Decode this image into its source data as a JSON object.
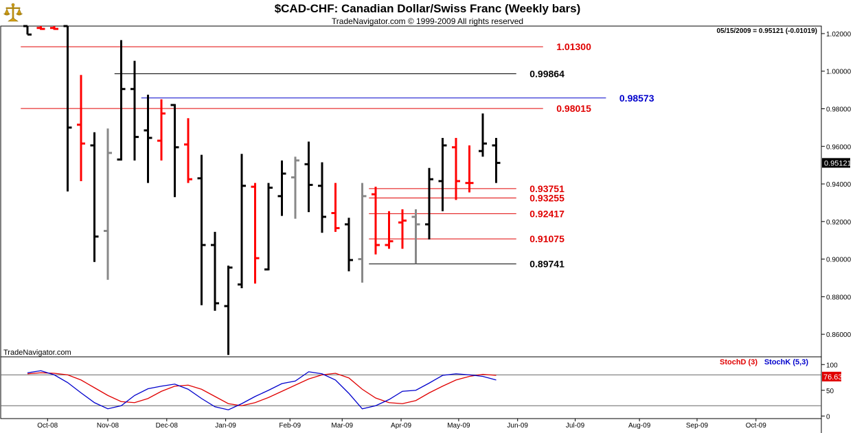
{
  "header": {
    "title": "$CAD-CHF:  Canadian Dollar/Swiss Franc  (Weekly bars)",
    "copyright": "TradeNavigator.com © 1999-2009 All rights reserved",
    "status": "05/15/2009 = 0.95121 (-0.01019)",
    "watermark": "TradeNavigator.com",
    "last_price_label": "0.95121"
  },
  "logo": {
    "icon": "scales-of-justice-icon",
    "color": "#d4a017"
  },
  "chart_data": [
    {
      "type": "ohlc",
      "title": "$CAD-CHF:  Canadian Dollar/Swiss Franc  (Weekly bars)",
      "xlabel": "",
      "ylabel": "",
      "ylim": [
        0.848,
        1.024
      ],
      "y_ticks": [
        1.02,
        1.0,
        0.98,
        0.96,
        0.94,
        0.92,
        0.9,
        0.88,
        0.86
      ],
      "y_tick_labels": [
        "1.02000",
        "1.00000",
        "0.98000",
        "0.96000",
        "0.94000",
        "0.92000",
        "0.90000",
        "0.88000",
        "0.86000"
      ],
      "x_month_labels": [
        {
          "label": "Oct-08",
          "week": 1.5
        },
        {
          "label": "Nov-08",
          "week": 6.0
        },
        {
          "label": "Dec-08",
          "week": 10.4
        },
        {
          "label": "Jan-09",
          "week": 14.8
        },
        {
          "label": "Feb-09",
          "week": 19.6
        },
        {
          "label": "Mar-09",
          "week": 23.5
        },
        {
          "label": "Apr-09",
          "week": 27.9
        },
        {
          "label": "May-09",
          "week": 32.2
        },
        {
          "label": "Jun-09",
          "week": 36.6
        },
        {
          "label": "Jul-09",
          "week": 40.9
        },
        {
          "label": "Aug-09",
          "week": 45.7
        },
        {
          "label": "Sep-09",
          "week": 50.0
        },
        {
          "label": "Oct-09",
          "week": 54.4
        }
      ],
      "colors": {
        "up": "#000000",
        "down": "#ff0000",
        "neutral": "#888888"
      },
      "bars": [
        {
          "week": 0,
          "open": 1.024,
          "high": 1.024,
          "low": 1.0195,
          "close": 1.0195,
          "color": "up"
        },
        {
          "week": 1,
          "open": 1.023,
          "high": 1.024,
          "low": 1.022,
          "close": 1.0225,
          "color": "down"
        },
        {
          "week": 2,
          "open": 1.023,
          "high": 1.024,
          "low": 1.022,
          "close": 1.0225,
          "color": "down"
        },
        {
          "week": 3,
          "open": 1.024,
          "high": 1.024,
          "low": 0.936,
          "close": 0.97,
          "color": "up"
        },
        {
          "week": 4,
          "open": 0.9715,
          "high": 0.998,
          "low": 0.9415,
          "close": 0.9615,
          "color": "down"
        },
        {
          "week": 5,
          "open": 0.9605,
          "high": 0.9675,
          "low": 0.8985,
          "close": 0.912,
          "color": "up"
        },
        {
          "week": 6,
          "open": 0.915,
          "high": 0.9695,
          "low": 0.889,
          "close": 0.9565,
          "color": "neutral"
        },
        {
          "week": 7,
          "open": 0.953,
          "high": 1.0165,
          "low": 0.9525,
          "close": 0.9905,
          "color": "up"
        },
        {
          "week": 8,
          "open": 0.9905,
          "high": 1.0055,
          "low": 0.9525,
          "close": 0.965,
          "color": "up"
        },
        {
          "week": 9,
          "open": 0.9685,
          "high": 0.9875,
          "low": 0.9405,
          "close": 0.9645,
          "color": "up"
        },
        {
          "week": 10,
          "open": 0.963,
          "high": 0.985,
          "low": 0.9525,
          "close": 0.9775,
          "color": "down"
        },
        {
          "week": 11,
          "open": 0.982,
          "high": 0.9825,
          "low": 0.933,
          "close": 0.9595,
          "color": "up"
        },
        {
          "week": 12,
          "open": 0.961,
          "high": 0.975,
          "low": 0.9405,
          "close": 0.9425,
          "color": "down"
        },
        {
          "week": 13,
          "open": 0.943,
          "high": 0.9555,
          "low": 0.8755,
          "close": 0.9075,
          "color": "up"
        },
        {
          "week": 14,
          "open": 0.9075,
          "high": 0.9145,
          "low": 0.8725,
          "close": 0.8765,
          "color": "up"
        },
        {
          "week": 15,
          "open": 0.875,
          "high": 0.8965,
          "low": 0.849,
          "close": 0.8955,
          "color": "up"
        },
        {
          "week": 16,
          "open": 0.8865,
          "high": 0.956,
          "low": 0.8845,
          "close": 0.939,
          "color": "up"
        },
        {
          "week": 17,
          "open": 0.9385,
          "high": 0.9405,
          "low": 0.887,
          "close": 0.9005,
          "color": "down"
        },
        {
          "week": 18,
          "open": 0.8945,
          "high": 0.9405,
          "low": 0.894,
          "close": 0.938,
          "color": "up"
        },
        {
          "week": 19,
          "open": 0.9335,
          "high": 0.9525,
          "low": 0.923,
          "close": 0.9455,
          "color": "up"
        },
        {
          "week": 20,
          "open": 0.9435,
          "high": 0.9545,
          "low": 0.9215,
          "close": 0.9525,
          "color": "neutral"
        },
        {
          "week": 21,
          "open": 0.9505,
          "high": 0.9625,
          "low": 0.925,
          "close": 0.9395,
          "color": "up"
        },
        {
          "week": 22,
          "open": 0.939,
          "high": 0.9515,
          "low": 0.914,
          "close": 0.9225,
          "color": "up"
        },
        {
          "week": 23,
          "open": 0.9245,
          "high": 0.9405,
          "low": 0.9145,
          "close": 0.9165,
          "color": "down"
        },
        {
          "week": 24,
          "open": 0.9185,
          "high": 0.922,
          "low": 0.8935,
          "close": 0.8995,
          "color": "up"
        },
        {
          "week": 25,
          "open": 0.9,
          "high": 0.9405,
          "low": 0.8875,
          "close": 0.9335,
          "color": "neutral"
        },
        {
          "week": 26,
          "open": 0.9345,
          "high": 0.9385,
          "low": 0.9025,
          "close": 0.9075,
          "color": "down"
        },
        {
          "week": 27,
          "open": 0.9075,
          "high": 0.9255,
          "low": 0.9055,
          "close": 0.9095,
          "color": "down"
        },
        {
          "week": 28,
          "open": 0.9195,
          "high": 0.9265,
          "low": 0.9055,
          "close": 0.9205,
          "color": "down"
        },
        {
          "week": 29,
          "open": 0.9225,
          "high": 0.9265,
          "low": 0.8975,
          "close": 0.9185,
          "color": "neutral"
        },
        {
          "week": 30,
          "open": 0.9185,
          "high": 0.9485,
          "low": 0.9105,
          "close": 0.9425,
          "color": "up"
        },
        {
          "week": 31,
          "open": 0.9415,
          "high": 0.9645,
          "low": 0.9255,
          "close": 0.9605,
          "color": "up"
        },
        {
          "week": 32,
          "open": 0.9595,
          "high": 0.9645,
          "low": 0.9315,
          "close": 0.9415,
          "color": "down"
        },
        {
          "week": 33,
          "open": 0.9405,
          "high": 0.9605,
          "low": 0.9355,
          "close": 0.9405,
          "color": "down"
        },
        {
          "week": 34,
          "open": 0.9575,
          "high": 0.9775,
          "low": 0.9545,
          "close": 0.9615,
          "color": "up"
        },
        {
          "week": 35,
          "open": 0.9605,
          "high": 0.9645,
          "low": 0.9405,
          "close": 0.9512,
          "color": "up"
        }
      ],
      "levels": [
        {
          "value": 1.013,
          "label": "1.01300",
          "color": "#e00000",
          "from_week": -0.5,
          "to_week": 38.5,
          "label_week": 39.5
        },
        {
          "value": 0.99864,
          "label": "0.99864",
          "color": "#000000",
          "from_week": 6.5,
          "to_week": 36.5,
          "label_week": 37.5
        },
        {
          "value": 0.98573,
          "label": "0.98573",
          "color": "#0000cc",
          "from_week": 8.5,
          "to_week": 43.2,
          "label_week": 44.2
        },
        {
          "value": 0.98015,
          "label": "0.98015",
          "color": "#e00000",
          "from_week": -0.5,
          "to_week": 38.5,
          "label_week": 39.5
        },
        {
          "value": 0.93751,
          "label": "0.93751",
          "color": "#e00000",
          "from_week": 25.5,
          "to_week": 36.5,
          "label_week": 37.5
        },
        {
          "value": 0.93255,
          "label": "0.93255",
          "color": "#e00000",
          "from_week": 25.5,
          "to_week": 36.5,
          "label_week": 37.5
        },
        {
          "value": 0.92417,
          "label": "0.92417",
          "color": "#e00000",
          "from_week": 25.5,
          "to_week": 36.5,
          "label_week": 37.5
        },
        {
          "value": 0.91075,
          "label": "0.91075",
          "color": "#e00000",
          "from_week": 25.5,
          "to_week": 36.5,
          "label_week": 37.5
        },
        {
          "value": 0.89741,
          "label": "0.89741",
          "color": "#000000",
          "from_week": 25.5,
          "to_week": 36.5,
          "label_week": 37.5
        }
      ]
    },
    {
      "type": "line",
      "title": "",
      "ylim": [
        -5,
        115
      ],
      "y_ticks": [
        0,
        50,
        100
      ],
      "y_tick_labels": [
        "0",
        "50",
        "100"
      ],
      "reference_lines": [
        80,
        20
      ],
      "legend": [
        {
          "name": "StochD (3)",
          "color": "#e00000"
        },
        {
          "name": "StochK (5,3)",
          "color": "#0000cc"
        }
      ],
      "last_value_label": "76.63",
      "last_value": 76.63,
      "series": [
        {
          "name": "StochD (3)",
          "color": "#e00000",
          "x": [
            0,
            1,
            2,
            3,
            4,
            5,
            6,
            7,
            8,
            9,
            10,
            11,
            12,
            13,
            14,
            15,
            16,
            17,
            18,
            19,
            20,
            21,
            22,
            23,
            24,
            25,
            26,
            27,
            28,
            29,
            30,
            31,
            32,
            33,
            34,
            35
          ],
          "values": [
            82,
            84,
            83,
            80,
            70,
            55,
            40,
            28,
            26,
            34,
            48,
            58,
            60,
            52,
            38,
            24,
            20,
            26,
            36,
            48,
            60,
            72,
            80,
            83,
            74,
            52,
            35,
            26,
            24,
            30,
            45,
            58,
            70,
            77,
            81,
            79
          ]
        },
        {
          "name": "StochK (5,3)",
          "color": "#0000cc",
          "x": [
            0,
            1,
            2,
            3,
            4,
            5,
            6,
            7,
            8,
            9,
            10,
            11,
            12,
            13,
            14,
            15,
            16,
            17,
            18,
            19,
            20,
            21,
            22,
            23,
            24,
            25,
            26,
            27,
            28,
            29,
            30,
            31,
            32,
            33,
            34,
            35
          ],
          "values": [
            84,
            88,
            80,
            65,
            45,
            26,
            14,
            20,
            40,
            53,
            58,
            62,
            52,
            34,
            18,
            12,
            24,
            38,
            50,
            63,
            68,
            86,
            82,
            70,
            44,
            14,
            20,
            32,
            48,
            50,
            64,
            79,
            82,
            80,
            77,
            70
          ]
        }
      ]
    }
  ]
}
